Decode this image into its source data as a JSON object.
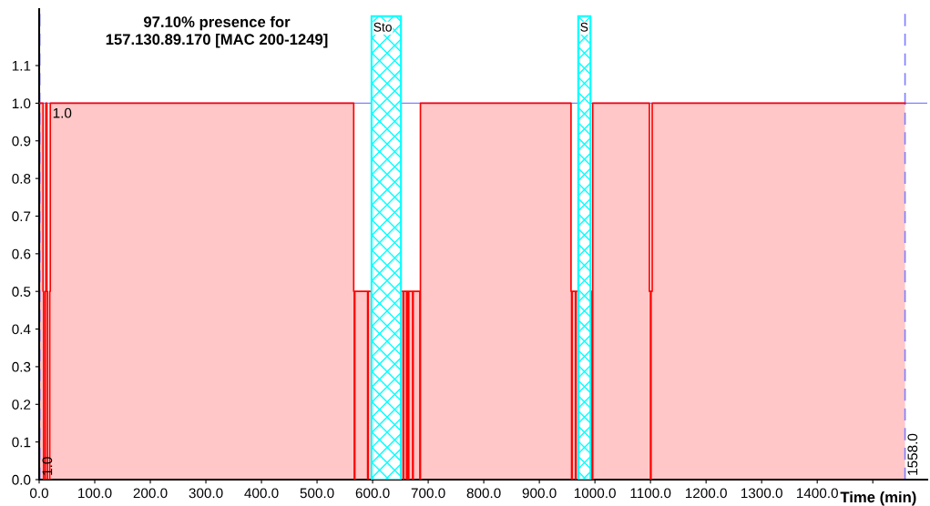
{
  "chart_data": {
    "type": "step",
    "title": "97.10% presence for\n157.130.89.170 [MAC 200-1249]",
    "xlabel": "Time (min)",
    "series": [
      {
        "color": "#ff0000",
        "x": [
          0,
          7,
          8,
          11,
          12,
          14,
          15,
          19,
          20,
          566,
          567,
          568,
          591,
          592,
          593,
          651,
          655,
          656,
          661,
          662,
          664,
          665,
          672,
          673,
          685,
          686,
          957,
          958,
          959,
          965,
          966,
          994,
          996,
          1098,
          1100,
          1101,
          1103,
          1558
        ],
        "values": [
          1,
          0.5,
          0,
          0.5,
          1,
          0.5,
          0,
          0.5,
          1,
          0.5,
          0,
          0.5,
          0,
          0.5,
          0.5,
          0.5,
          0,
          0.5,
          0,
          0.5,
          0,
          0.5,
          0,
          0.5,
          0,
          1,
          0.5,
          0,
          0.5,
          0,
          0.5,
          0,
          1,
          0.5,
          0,
          0.5,
          1,
          1
        ]
      }
    ],
    "xlim": [
      0,
      1598
    ],
    "ylim": [
      0,
      1.25
    ],
    "xticks": [
      {
        "value": 0,
        "label": "0.0"
      },
      {
        "value": 100,
        "label": "100.0"
      },
      {
        "value": 200,
        "label": "200.0"
      },
      {
        "value": 300,
        "label": "300.0"
      },
      {
        "value": 400,
        "label": "400.0"
      },
      {
        "value": 500,
        "label": "500.0"
      },
      {
        "value": 600,
        "label": "600.0"
      },
      {
        "value": 700,
        "label": "700.0"
      },
      {
        "value": 800,
        "label": "800.0"
      },
      {
        "value": 900,
        "label": "900.0"
      },
      {
        "value": 1000,
        "label": "1000.0"
      },
      {
        "value": 1100,
        "label": "1100.0"
      },
      {
        "value": 1200,
        "label": "1200.0"
      },
      {
        "value": 1300,
        "label": "1300.0"
      },
      {
        "value": 1400,
        "label": "1400.0"
      },
      {
        "value": 1500,
        "label": null
      }
    ],
    "yticks": [
      {
        "value": 0,
        "label": "0.0"
      },
      {
        "value": 0.1,
        "label": "0.1"
      },
      {
        "value": 0.2,
        "label": "0.2"
      },
      {
        "value": 0.3,
        "label": "0.3"
      },
      {
        "value": 0.4,
        "label": "0.4"
      },
      {
        "value": 0.5,
        "label": "0.5"
      },
      {
        "value": 0.6,
        "label": "0.6"
      },
      {
        "value": 0.7,
        "label": "0.7"
      },
      {
        "value": 0.8,
        "label": "0.8"
      },
      {
        "value": 0.9,
        "label": "0.9"
      },
      {
        "value": 1.0,
        "label": "1.0"
      },
      {
        "value": 1.1,
        "label": "1.1"
      }
    ],
    "bands": [
      {
        "axis": "x",
        "from": 598,
        "to": 651,
        "label": "Sto",
        "color": "#00ffff"
      },
      {
        "axis": "x",
        "from": 970,
        "to": 992,
        "label": "S",
        "color": "#00ffff"
      }
    ],
    "ref_lines": [
      {
        "axis": "x",
        "value": 1,
        "label": "1.0",
        "color": "#8080ff",
        "line_style": "dashed"
      },
      {
        "axis": "x",
        "value": 1558,
        "label": "1558.0",
        "color": "#8080ff",
        "line_style": "dashed"
      },
      {
        "axis": "y",
        "value": 1.0,
        "label": "1.0",
        "color": "#8080ff",
        "line_style": "solid"
      }
    ],
    "grid": false
  }
}
